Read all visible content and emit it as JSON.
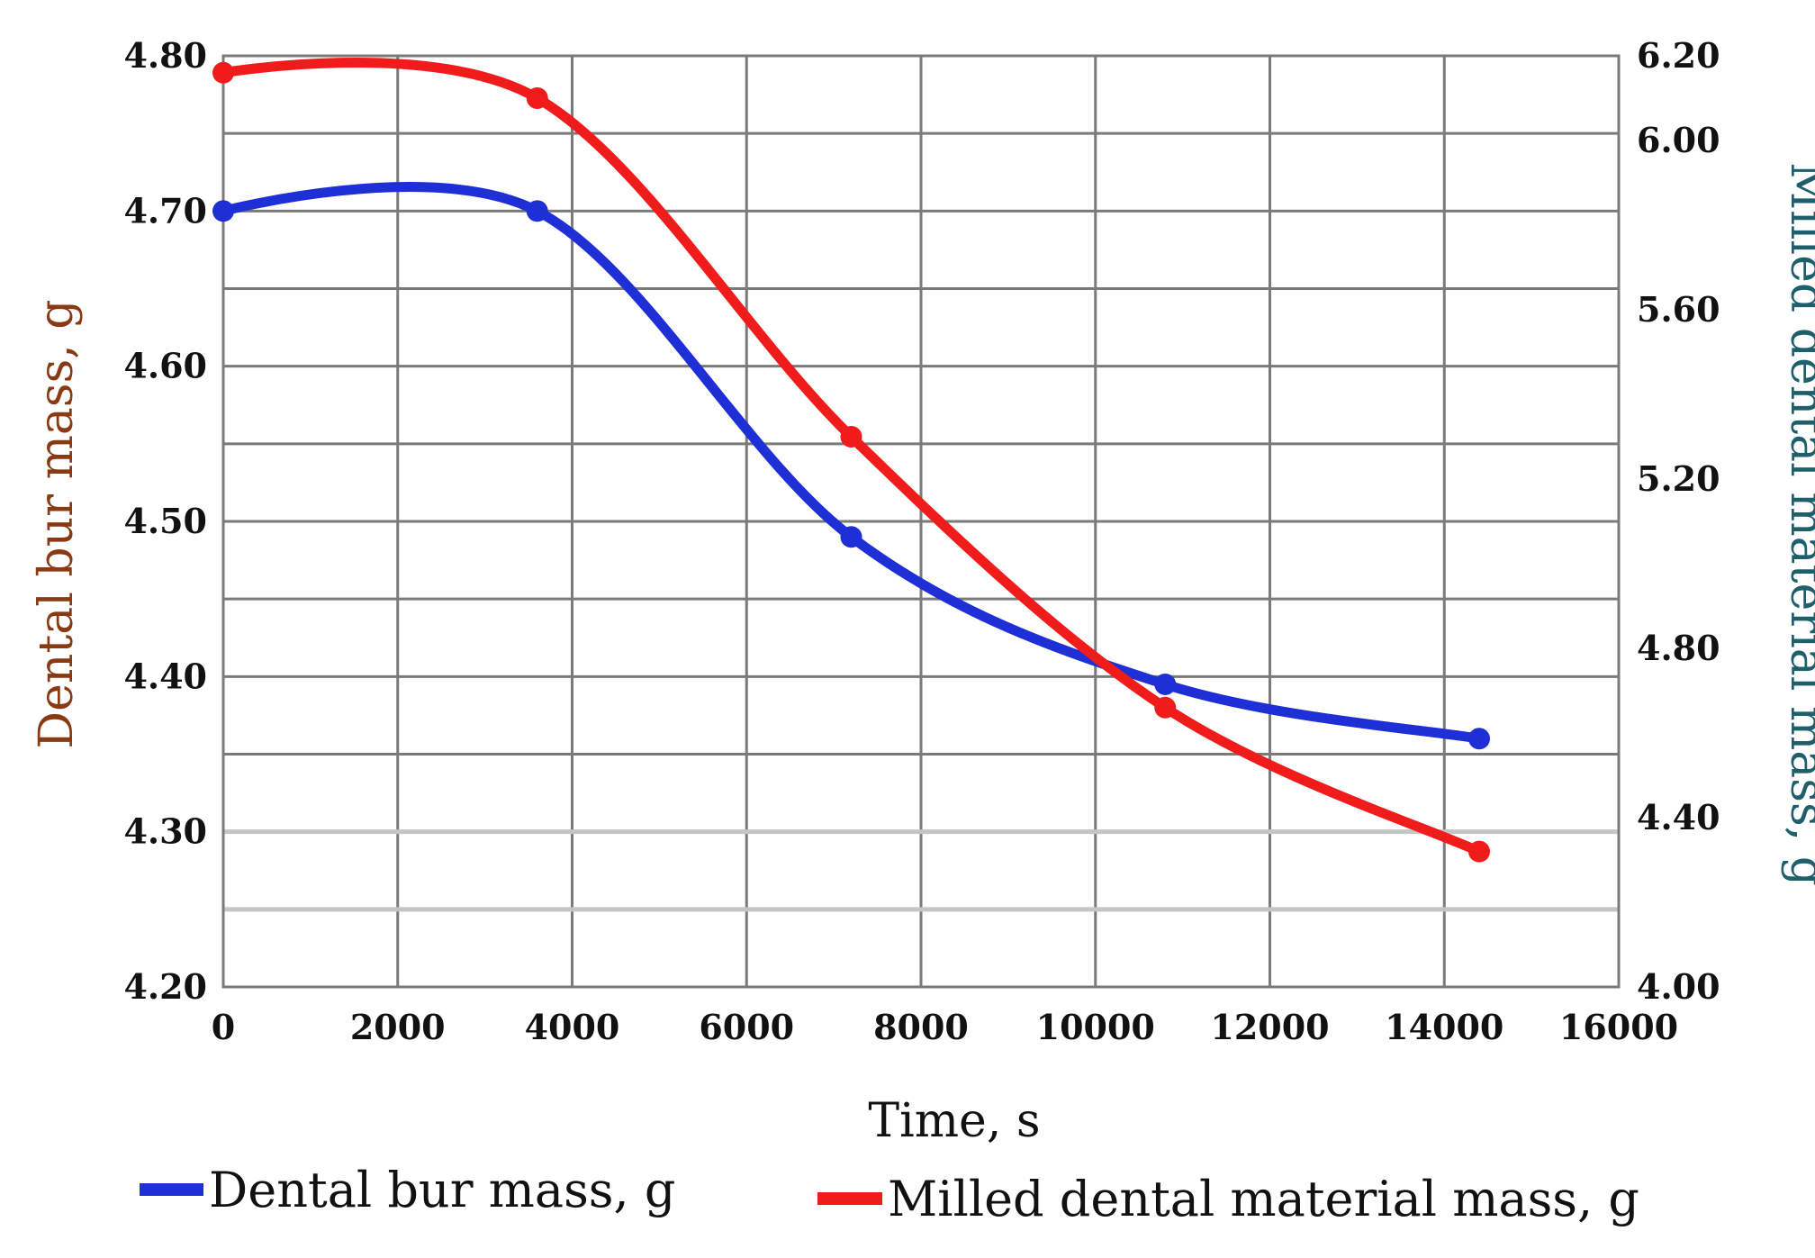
{
  "chart_data": {
    "type": "line",
    "title": "",
    "xlabel": "Time, s",
    "ylabel_left": "Dental bur mass, g",
    "ylabel_right": "Milled dental material mass, g",
    "xlim": [
      0,
      16000
    ],
    "ylim_left": [
      4.2,
      4.8
    ],
    "ylim_right": [
      4.0,
      6.2
    ],
    "x_ticks": [
      "0",
      "2000",
      "4000",
      "6000",
      "8000",
      "10000",
      "12000",
      "14000",
      "16000"
    ],
    "y_ticks_left": [
      "4.20",
      "4.30",
      "4.40",
      "4.50",
      "4.60",
      "4.70",
      "4.80"
    ],
    "y_ticks_right": [
      "4.00",
      "4.40",
      "4.80",
      "5.20",
      "5.60",
      "6.00",
      "6.20"
    ],
    "grid": true,
    "legend_position": "bottom",
    "series": [
      {
        "name": "Dental bur mass, g",
        "axis": "left",
        "color": "#1f2fd6",
        "x": [
          0,
          3600,
          7200,
          10800,
          14400
        ],
        "y": [
          4.7,
          4.7,
          4.49,
          4.395,
          4.36
        ]
      },
      {
        "name": "Milled dental material mass, g",
        "axis": "right",
        "color": "#f01c1c",
        "x": [
          0,
          3600,
          7200,
          10800,
          14400
        ],
        "y": [
          6.16,
          6.1,
          5.3,
          4.66,
          4.32
        ]
      }
    ]
  }
}
